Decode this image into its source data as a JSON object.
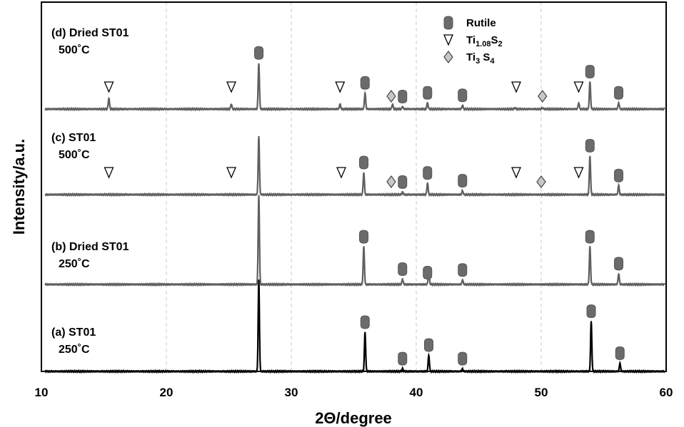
{
  "chart_data": {
    "type": "line",
    "xlabel": "2Θ/degree",
    "ylabel": "Intensity/a.u.",
    "xlim": [
      10,
      60
    ],
    "x_ticks": [
      "10",
      "20",
      "30",
      "40",
      "50",
      "60"
    ],
    "grid": "vertical dashed at 20, 30, 40, 50",
    "legend": {
      "placement": "top-right",
      "entries": [
        {
          "marker": "rutile-icon",
          "label": "Rutile"
        },
        {
          "marker": "triangle-down-icon",
          "label": "Ti",
          "sub": "1.08",
          "label2": "S",
          "sub2": "2"
        },
        {
          "marker": "diamond-icon",
          "label": "Ti",
          "sub": "3",
          "label2": " S",
          "sub2": "4"
        }
      ]
    },
    "series": [
      {
        "line1": "(a) ST01",
        "line2": "250˚C",
        "color": "#000000",
        "peaks": [
          [
            27.4,
            1.0
          ],
          [
            35.9,
            0.43
          ],
          [
            38.9,
            0.03
          ],
          [
            41.0,
            0.18
          ],
          [
            43.7,
            0.03
          ],
          [
            54.0,
            0.55
          ],
          [
            56.3,
            0.09
          ]
        ],
        "markers": [
          {
            "type": "rutile",
            "x": 35.9
          },
          {
            "type": "rutile",
            "x": 38.9
          },
          {
            "type": "rutile",
            "x": 41.0
          },
          {
            "type": "rutile",
            "x": 43.7
          },
          {
            "type": "rutile",
            "x": 54.0
          },
          {
            "type": "rutile",
            "x": 56.3
          }
        ]
      },
      {
        "line1": "(b) Dried ST01",
        "line2": "250˚C",
        "color": "#5f5f5f",
        "peaks": [
          [
            27.4,
            1.0
          ],
          [
            35.8,
            0.42
          ],
          [
            38.9,
            0.06
          ],
          [
            41.0,
            0.15
          ],
          [
            43.7,
            0.05
          ],
          [
            53.9,
            0.42
          ],
          [
            56.2,
            0.12
          ]
        ],
        "markers": [
          {
            "type": "rutile",
            "x": 35.8
          },
          {
            "type": "rutile",
            "x": 38.9
          },
          {
            "type": "rutile",
            "x": 40.9
          },
          {
            "type": "rutile",
            "x": 43.7
          },
          {
            "type": "rutile",
            "x": 53.9
          },
          {
            "type": "rutile",
            "x": 56.2
          }
        ]
      },
      {
        "line1": "(c) ST01",
        "line2": "500˚C",
        "color": "#5f5f5f",
        "peaks": [
          [
            27.4,
            0.45
          ],
          [
            35.8,
            0.17
          ],
          [
            38.9,
            0.02
          ],
          [
            40.9,
            0.09
          ],
          [
            43.7,
            0.03
          ],
          [
            53.9,
            0.3
          ],
          [
            56.2,
            0.07
          ]
        ],
        "markers": [
          {
            "type": "triangle",
            "x": 15.4
          },
          {
            "type": "triangle",
            "x": 25.2
          },
          {
            "type": "triangle",
            "x": 34.0
          },
          {
            "type": "diamond",
            "x": 38.0
          },
          {
            "type": "rutile",
            "x": 38.9
          },
          {
            "type": "rutile",
            "x": 40.9
          },
          {
            "type": "rutile",
            "x": 43.7
          },
          {
            "type": "triangle",
            "x": 48.0
          },
          {
            "type": "diamond",
            "x": 50.0
          },
          {
            "type": "triangle",
            "x": 53.0
          },
          {
            "type": "rutile",
            "x": 35.8
          },
          {
            "type": "rutile",
            "x": 53.9
          },
          {
            "type": "rutile",
            "x": 56.2
          }
        ]
      },
      {
        "line1": "(d) Dried ST01",
        "line2": "500˚C",
        "color": "#5f5f5f",
        "peaks": [
          [
            15.4,
            0.09
          ],
          [
            25.2,
            0.04
          ],
          [
            27.4,
            0.37
          ],
          [
            33.9,
            0.04
          ],
          [
            35.9,
            0.13
          ],
          [
            38.1,
            0.04
          ],
          [
            38.9,
            0.02
          ],
          [
            40.9,
            0.05
          ],
          [
            43.7,
            0.03
          ],
          [
            47.9,
            0.01
          ],
          [
            50.1,
            0.01
          ],
          [
            53.0,
            0.05
          ],
          [
            53.9,
            0.22
          ],
          [
            56.2,
            0.05
          ]
        ],
        "markers": [
          {
            "type": "triangle",
            "x": 15.4
          },
          {
            "type": "triangle",
            "x": 25.2
          },
          {
            "type": "triangle",
            "x": 33.9
          },
          {
            "type": "diamond",
            "x": 38.0
          },
          {
            "type": "rutile",
            "x": 38.9
          },
          {
            "type": "rutile",
            "x": 40.9
          },
          {
            "type": "rutile",
            "x": 43.7
          },
          {
            "type": "triangle",
            "x": 48.0
          },
          {
            "type": "diamond",
            "x": 50.1
          },
          {
            "type": "triangle",
            "x": 53.0
          },
          {
            "type": "rutile",
            "x": 27.4
          },
          {
            "type": "rutile",
            "x": 35.9
          },
          {
            "type": "rutile",
            "x": 53.9
          },
          {
            "type": "rutile",
            "x": 56.2
          }
        ]
      }
    ]
  }
}
